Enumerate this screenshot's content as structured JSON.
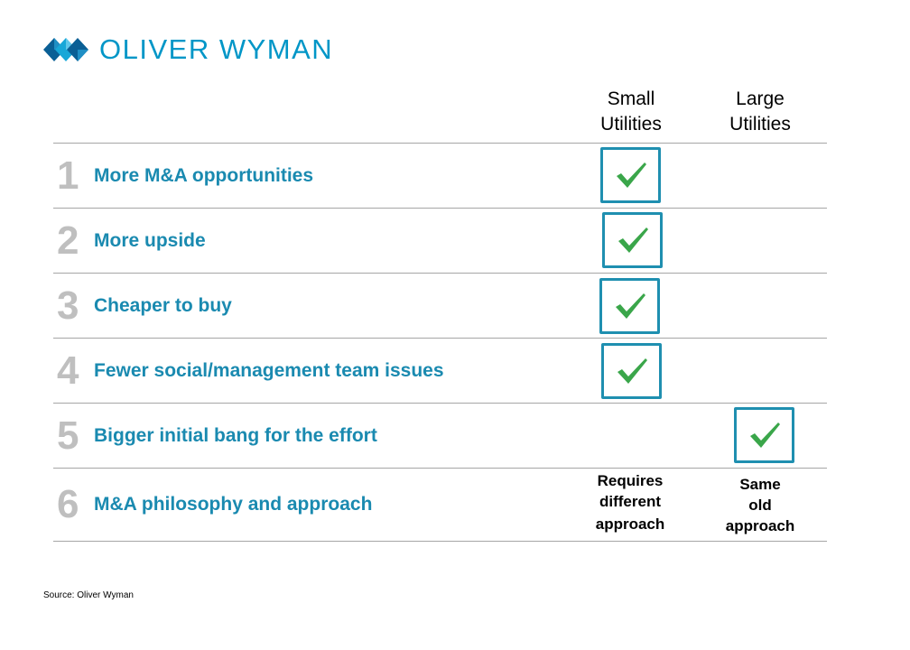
{
  "brand": {
    "name": "OLIVER WYMAN",
    "accent_color": "#0096c7"
  },
  "columns": [
    {
      "line1": "Small",
      "line2": "Utilities"
    },
    {
      "line1": "Large",
      "line2": "Utilities"
    }
  ],
  "rows": [
    {
      "number": "1",
      "label": "More M&A opportunities"
    },
    {
      "number": "2",
      "label": "More upside"
    },
    {
      "number": "3",
      "label": "Cheaper to buy"
    },
    {
      "number": "4",
      "label": "Fewer social/management team issues"
    },
    {
      "number": "5",
      "label": "Bigger initial bang for the effort"
    },
    {
      "number": "6",
      "label": "M&A philosophy and approach"
    }
  ],
  "checks": [
    {
      "row": 1,
      "column": "Small Utilities",
      "icon": "checkmark-icon"
    },
    {
      "row": 2,
      "column": "Small Utilities",
      "icon": "checkmark-icon"
    },
    {
      "row": 3,
      "column": "Small Utilities",
      "icon": "checkmark-icon"
    },
    {
      "row": 4,
      "column": "Small Utilities",
      "icon": "checkmark-icon"
    },
    {
      "row": 5,
      "column": "Large Utilities",
      "icon": "checkmark-icon"
    }
  ],
  "approach": {
    "small": [
      "Requires",
      "different",
      "approach"
    ],
    "large": [
      "Same",
      "old",
      "approach"
    ]
  },
  "colors": {
    "row_label": "#1a8ab0",
    "row_number": "#bfbfbf",
    "check_box_border": "#1f8fb0",
    "check_mark": "#3aa64a"
  },
  "source": "Source: Oliver Wyman"
}
